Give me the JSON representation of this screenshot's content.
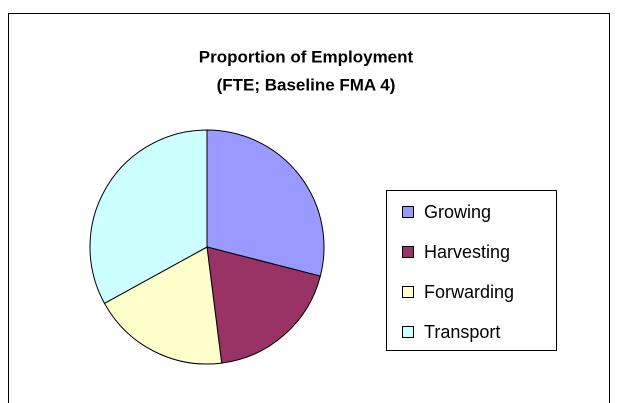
{
  "chart_data": {
    "type": "pie",
    "title": [
      "Proportion of Employment",
      "(FTE; Baseline FMA 4)"
    ],
    "categories": [
      "Growing",
      "Harvesting",
      "Forwarding",
      "Transport"
    ],
    "values": [
      29,
      19,
      19,
      33
    ],
    "colors": [
      "#9999ff",
      "#993366",
      "#ffffcc",
      "#ccffff"
    ],
    "legend": "right"
  }
}
